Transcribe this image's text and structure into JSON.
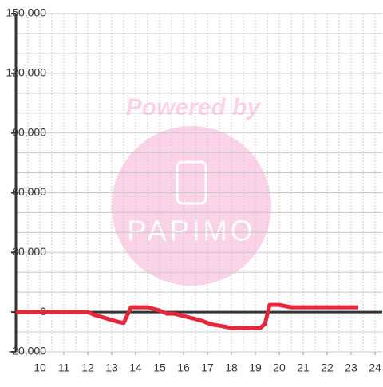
{
  "chart_data": {
    "type": "line",
    "watermark": [
      "Powered by",
      "PAPIMO"
    ],
    "x": [
      9,
      12,
      12.3,
      12.6,
      13,
      13.3,
      13.5,
      13.8,
      14,
      14.5,
      15,
      15.3,
      15.6,
      16,
      16.5,
      16.8,
      17,
      17.3,
      17.6,
      18,
      18.5,
      19,
      19.2,
      19.4,
      19.6,
      20,
      20.5,
      21,
      22,
      23.3
    ],
    "series": [
      {
        "color": "#e8283a",
        "values": [
          0,
          0,
          -1500,
          -2500,
          -4000,
          -5000,
          -5500,
          2400,
          2400,
          2400,
          800,
          -800,
          -800,
          -2000,
          -3500,
          -4500,
          -5500,
          -6500,
          -7000,
          -8000,
          -8000,
          -8000,
          -8000,
          -6000,
          3600,
          3600,
          2400,
          2400,
          2400,
          2400
        ]
      }
    ],
    "xlim": [
      9,
      24.3
    ],
    "xticks": [
      10,
      11,
      12,
      13,
      14,
      15,
      16,
      17,
      18,
      19,
      20,
      21,
      22,
      23,
      24
    ],
    "xminor": [
      9.5,
      10.5,
      11.5,
      12.5,
      13.5,
      14.5,
      15.5,
      16.5,
      17.5,
      18.5,
      19.5,
      20.5,
      21.5,
      22.5,
      23.5
    ],
    "ylim": [
      -20000,
      150000
    ],
    "yticks": [
      {
        "value": -20000,
        "label": "-20,000"
      },
      0,
      {
        "value": 30000,
        "label": "30,000"
      },
      {
        "value": 60000,
        "label": "60,000"
      },
      {
        "value": 90000,
        "label": "90,000"
      },
      {
        "value": 120000,
        "label": "120,000"
      },
      {
        "value": 150000,
        "label": "150,000"
      }
    ],
    "yminor": [
      -10000,
      10000,
      20000,
      40000,
      50000,
      70000,
      80000,
      100000,
      110000,
      130000,
      140000
    ],
    "grid": true
  }
}
